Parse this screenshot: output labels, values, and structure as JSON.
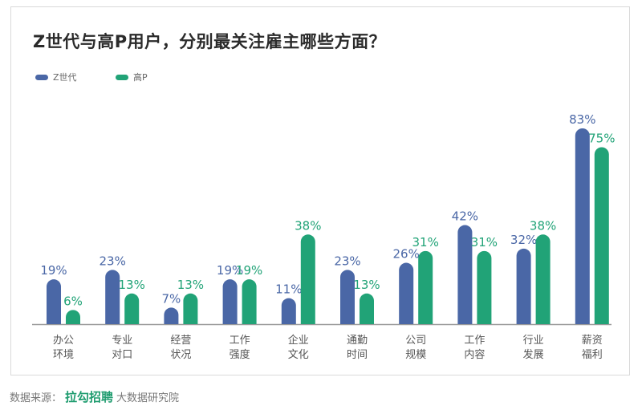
{
  "title": "Z世代与高P用户，分别最关注雇主哪些方面？",
  "source": {
    "prefix": "数据来源：",
    "brand": "拉勾招聘",
    "suffix": "大数据研究院"
  },
  "colors": {
    "series_z": "#4a67a6",
    "series_p": "#21a377",
    "axis": "#9a9a9a"
  },
  "chart_data": {
    "type": "bar",
    "title": "Z世代与高P用户，分别最关注雇主哪些方面？",
    "categories": [
      [
        "办公",
        "环境"
      ],
      [
        "专业",
        "对口"
      ],
      [
        "经营",
        "状况"
      ],
      [
        "工作",
        "强度"
      ],
      [
        "企业",
        "文化"
      ],
      [
        "通勤",
        "时间"
      ],
      [
        "公司",
        "规模"
      ],
      [
        "工作",
        "内容"
      ],
      [
        "行业",
        "发展"
      ],
      [
        "薪资",
        "福利"
      ]
    ],
    "series": [
      {
        "name": "Z世代",
        "values": [
          19,
          23,
          7,
          19,
          11,
          23,
          26,
          42,
          32,
          83
        ]
      },
      {
        "name": "高P",
        "values": [
          6,
          13,
          13,
          19,
          38,
          13,
          31,
          31,
          38,
          75
        ]
      }
    ],
    "value_suffix": "%",
    "xlabel": "",
    "ylabel": "",
    "ylim": [
      0,
      100
    ],
    "grid": false,
    "legend": "top-left"
  }
}
